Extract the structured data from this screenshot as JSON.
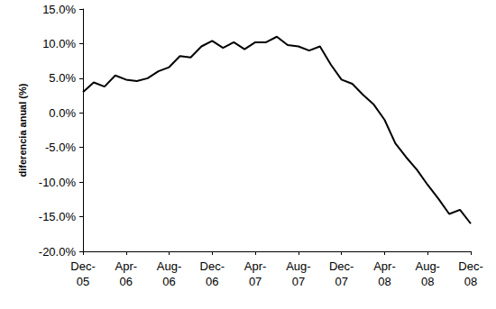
{
  "chart_data": {
    "type": "line",
    "y_label": "diferencia anual (%)",
    "categories": [
      "Dec-05",
      null,
      null,
      null,
      "Apr-06",
      null,
      null,
      null,
      "Aug-06",
      null,
      null,
      null,
      "Dec-06",
      null,
      null,
      null,
      "Apr-07",
      null,
      null,
      null,
      "Aug-07",
      null,
      null,
      null,
      "Dec-07",
      null,
      null,
      null,
      "Apr-08",
      null,
      null,
      null,
      "Aug-08",
      null,
      null,
      null,
      "Dec-08"
    ],
    "values": [
      3.0,
      4.4,
      3.8,
      5.4,
      4.8,
      4.6,
      5.0,
      6.0,
      6.6,
      8.2,
      8.0,
      9.6,
      10.4,
      9.4,
      10.2,
      9.2,
      10.2,
      10.2,
      11.0,
      9.8,
      9.6,
      9.0,
      9.6,
      7.0,
      4.8,
      4.2,
      2.6,
      1.2,
      -1.0,
      -4.4,
      -6.4,
      -8.2,
      -10.4,
      -12.4,
      -14.6,
      -14.0,
      -16.0
    ],
    "color": "#000000",
    "ylim": [
      -20,
      15
    ],
    "yticks": [
      {
        "value": -20,
        "label": "-20.0%"
      },
      {
        "value": -15,
        "label": "-15.0%"
      },
      {
        "value": -10,
        "label": "-10.0%"
      },
      {
        "value": -5,
        "label": "-5.0%"
      },
      {
        "value": 0,
        "label": "0.0%"
      },
      {
        "value": 5,
        "label": "5.0%"
      },
      {
        "value": 10,
        "label": "10.0%"
      },
      {
        "value": 15,
        "label": "15.0%"
      }
    ],
    "grid": false
  }
}
